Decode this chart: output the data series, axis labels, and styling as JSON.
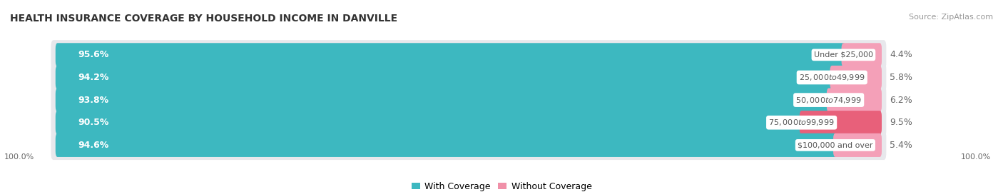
{
  "title": "HEALTH INSURANCE COVERAGE BY HOUSEHOLD INCOME IN DANVILLE",
  "source": "Source: ZipAtlas.com",
  "categories": [
    "Under $25,000",
    "$25,000 to $49,999",
    "$50,000 to $74,999",
    "$75,000 to $99,999",
    "$100,000 and over"
  ],
  "with_coverage": [
    95.6,
    94.2,
    93.8,
    90.5,
    94.6
  ],
  "without_coverage": [
    4.4,
    5.8,
    6.2,
    9.5,
    5.4
  ],
  "coverage_color": "#3db8c0",
  "no_coverage_color_1": "#f4a0b8",
  "no_coverage_color_2": "#f4a0b8",
  "no_coverage_color_3": "#f4a0b8",
  "no_coverage_color_4": "#e8607a",
  "no_coverage_color_5": "#f4a0b8",
  "row_bg_color": "#e8e8ec",
  "label_color_coverage": "#ffffff",
  "label_color_no_coverage": "#666666",
  "category_label_color": "#555555",
  "title_fontsize": 10,
  "source_fontsize": 8,
  "bar_label_fontsize": 9,
  "category_fontsize": 8,
  "legend_fontsize": 9,
  "axis_label_fontsize": 8,
  "background_color": "#ffffff",
  "left_label": "100.0%",
  "right_label": "100.0%"
}
